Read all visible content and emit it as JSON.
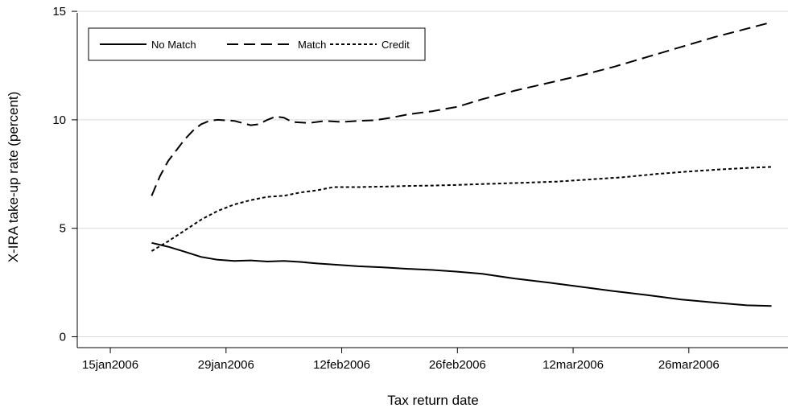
{
  "chart_data": {
    "type": "line",
    "xlabel": "Tax return date",
    "ylabel": "X-IRA take-up rate (percent)",
    "xlim": [
      "2006-01-11",
      "2006-04-07"
    ],
    "ylim": [
      -0.5,
      15.3
    ],
    "x_ticks": [
      "2006-01-15",
      "2006-01-29",
      "2006-02-12",
      "2006-02-26",
      "2006-03-12",
      "2006-03-26"
    ],
    "x_tick_labels": [
      "15jan2006",
      "29jan2006",
      "12feb2006",
      "26feb2006",
      "12mar2006",
      "26mar2006"
    ],
    "y_ticks": [
      0,
      5,
      10,
      15
    ],
    "y_tick_labels": [
      "0",
      "5",
      "10",
      "15"
    ],
    "grid": "horizontal",
    "legend": {
      "placement": "top-left",
      "entries": [
        "No Match",
        "Match",
        "Credit"
      ]
    },
    "series": [
      {
        "name": "No Match",
        "line_style": "solid",
        "color": "#000000",
        "points": [
          [
            "2006-01-20",
            4.33
          ],
          [
            "2006-01-22",
            4.15
          ],
          [
            "2006-01-24",
            3.92
          ],
          [
            "2006-01-26",
            3.68
          ],
          [
            "2006-01-28",
            3.55
          ],
          [
            "2006-01-30",
            3.5
          ],
          [
            "2006-02-01",
            3.52
          ],
          [
            "2006-02-03",
            3.47
          ],
          [
            "2006-02-05",
            3.5
          ],
          [
            "2006-02-07",
            3.45
          ],
          [
            "2006-02-09",
            3.38
          ],
          [
            "2006-02-11",
            3.33
          ],
          [
            "2006-02-14",
            3.25
          ],
          [
            "2006-02-17",
            3.2
          ],
          [
            "2006-02-20",
            3.13
          ],
          [
            "2006-02-23",
            3.08
          ],
          [
            "2006-02-26",
            3.0
          ],
          [
            "2006-03-01",
            2.9
          ],
          [
            "2006-03-05",
            2.68
          ],
          [
            "2006-03-09",
            2.5
          ],
          [
            "2006-03-13",
            2.3
          ],
          [
            "2006-03-17",
            2.1
          ],
          [
            "2006-03-21",
            1.92
          ],
          [
            "2006-03-25",
            1.72
          ],
          [
            "2006-03-29",
            1.58
          ],
          [
            "2006-04-02",
            1.45
          ],
          [
            "2006-04-05",
            1.42
          ]
        ]
      },
      {
        "name": "Match",
        "line_style": "dash",
        "color": "#000000",
        "points": [
          [
            "2006-01-20",
            6.5
          ],
          [
            "2006-01-21",
            7.4
          ],
          [
            "2006-01-22",
            8.1
          ],
          [
            "2006-01-23",
            8.6
          ],
          [
            "2006-01-24",
            9.1
          ],
          [
            "2006-01-25",
            9.5
          ],
          [
            "2006-01-26",
            9.8
          ],
          [
            "2006-01-27",
            9.95
          ],
          [
            "2006-01-28",
            10.0
          ],
          [
            "2006-01-30",
            9.95
          ],
          [
            "2006-02-01",
            9.75
          ],
          [
            "2006-02-02",
            9.8
          ],
          [
            "2006-02-03",
            10.0
          ],
          [
            "2006-02-04",
            10.15
          ],
          [
            "2006-02-05",
            10.1
          ],
          [
            "2006-02-06",
            9.9
          ],
          [
            "2006-02-08",
            9.85
          ],
          [
            "2006-02-10",
            9.95
          ],
          [
            "2006-02-12",
            9.9
          ],
          [
            "2006-02-14",
            9.95
          ],
          [
            "2006-02-16",
            9.98
          ],
          [
            "2006-02-18",
            10.1
          ],
          [
            "2006-02-20",
            10.25
          ],
          [
            "2006-02-23",
            10.4
          ],
          [
            "2006-02-26",
            10.6
          ],
          [
            "2006-03-01",
            10.95
          ],
          [
            "2006-03-05",
            11.35
          ],
          [
            "2006-03-09",
            11.7
          ],
          [
            "2006-03-13",
            12.05
          ],
          [
            "2006-03-17",
            12.45
          ],
          [
            "2006-03-21",
            12.9
          ],
          [
            "2006-03-25",
            13.35
          ],
          [
            "2006-03-29",
            13.8
          ],
          [
            "2006-04-02",
            14.2
          ],
          [
            "2006-04-05",
            14.5
          ]
        ]
      },
      {
        "name": "Credit",
        "line_style": "short-dash",
        "color": "#000000",
        "points": [
          [
            "2006-01-20",
            3.95
          ],
          [
            "2006-01-22",
            4.4
          ],
          [
            "2006-01-24",
            4.9
          ],
          [
            "2006-01-26",
            5.4
          ],
          [
            "2006-01-28",
            5.8
          ],
          [
            "2006-01-30",
            6.1
          ],
          [
            "2006-02-01",
            6.3
          ],
          [
            "2006-02-03",
            6.45
          ],
          [
            "2006-02-05",
            6.5
          ],
          [
            "2006-02-07",
            6.65
          ],
          [
            "2006-02-09",
            6.75
          ],
          [
            "2006-02-11",
            6.9
          ],
          [
            "2006-02-14",
            6.9
          ],
          [
            "2006-02-17",
            6.92
          ],
          [
            "2006-02-20",
            6.95
          ],
          [
            "2006-02-23",
            6.97
          ],
          [
            "2006-02-26",
            7.0
          ],
          [
            "2006-03-02",
            7.05
          ],
          [
            "2006-03-06",
            7.1
          ],
          [
            "2006-03-10",
            7.15
          ],
          [
            "2006-03-14",
            7.25
          ],
          [
            "2006-03-18",
            7.35
          ],
          [
            "2006-03-22",
            7.5
          ],
          [
            "2006-03-26",
            7.62
          ],
          [
            "2006-03-30",
            7.72
          ],
          [
            "2006-04-03",
            7.8
          ],
          [
            "2006-04-05",
            7.83
          ]
        ]
      }
    ]
  }
}
